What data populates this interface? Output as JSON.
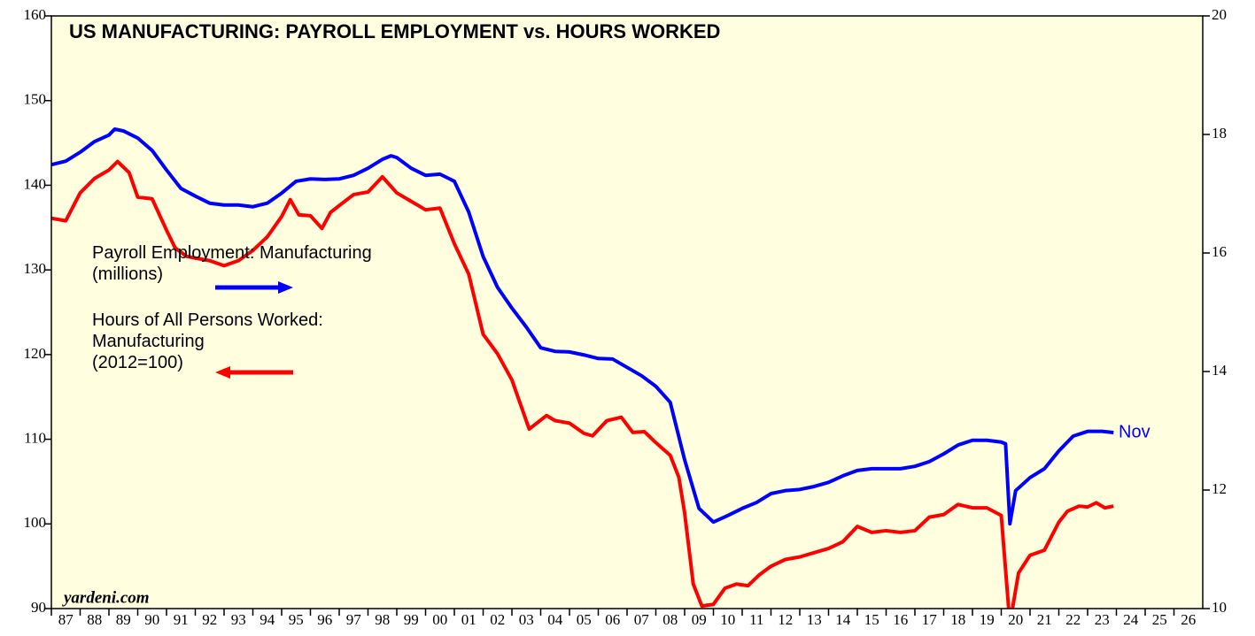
{
  "chart_data": {
    "type": "line",
    "title": "US MANUFACTURING: PAYROLL EMPLOYMENT vs. HOURS WORKED",
    "annotation": "Nov",
    "source": "yardeni.com",
    "xlim": [
      1987,
      2027
    ],
    "xticks": [
      {
        "value": 1987,
        "label": "87"
      },
      {
        "value": 1988,
        "label": "88"
      },
      {
        "value": 1989,
        "label": "89"
      },
      {
        "value": 1990,
        "label": "90"
      },
      {
        "value": 1991,
        "label": "91"
      },
      {
        "value": 1992,
        "label": "92"
      },
      {
        "value": 1993,
        "label": "93"
      },
      {
        "value": 1994,
        "label": "94"
      },
      {
        "value": 1995,
        "label": "95"
      },
      {
        "value": 1996,
        "label": "96"
      },
      {
        "value": 1997,
        "label": "97"
      },
      {
        "value": 1998,
        "label": "98"
      },
      {
        "value": 1999,
        "label": "99"
      },
      {
        "value": 2000,
        "label": "00"
      },
      {
        "value": 2001,
        "label": "01"
      },
      {
        "value": 2002,
        "label": "02"
      },
      {
        "value": 2003,
        "label": "03"
      },
      {
        "value": 2004,
        "label": "04"
      },
      {
        "value": 2005,
        "label": "05"
      },
      {
        "value": 2006,
        "label": "06"
      },
      {
        "value": 2007,
        "label": "07"
      },
      {
        "value": 2008,
        "label": "08"
      },
      {
        "value": 2009,
        "label": "09"
      },
      {
        "value": 2010,
        "label": "10"
      },
      {
        "value": 2011,
        "label": "11"
      },
      {
        "value": 2012,
        "label": "12"
      },
      {
        "value": 2013,
        "label": "13"
      },
      {
        "value": 2014,
        "label": "14"
      },
      {
        "value": 2015,
        "label": "15"
      },
      {
        "value": 2016,
        "label": "16"
      },
      {
        "value": 2017,
        "label": "17"
      },
      {
        "value": 2018,
        "label": "18"
      },
      {
        "value": 2019,
        "label": "19"
      },
      {
        "value": 2020,
        "label": "20"
      },
      {
        "value": 2021,
        "label": "21"
      },
      {
        "value": 2022,
        "label": "22"
      },
      {
        "value": 2023,
        "label": "23"
      },
      {
        "value": 2024,
        "label": "24"
      },
      {
        "value": 2025,
        "label": "25"
      },
      {
        "value": 2026,
        "label": "26"
      }
    ],
    "ylim": [
      90,
      160
    ],
    "yticks": [
      90,
      100,
      110,
      120,
      130,
      140,
      150,
      160
    ],
    "y2lim": [
      10,
      20
    ],
    "y2ticks": [
      10,
      12,
      14,
      16,
      18,
      20
    ],
    "series": [
      {
        "name": "Payroll Employment: Manufacturing\n(millions)",
        "color": "#0000ff",
        "axis": "y2",
        "x": [
          1987,
          1987.5,
          1988,
          1988.5,
          1989,
          1989.2,
          1989.5,
          1990,
          1990.5,
          1991,
          1991.5,
          1992,
          1992.5,
          1993,
          1993.5,
          1994,
          1994.5,
          1995,
          1995.5,
          1996,
          1996.5,
          1997,
          1997.5,
          1998,
          1998.5,
          1998.8,
          1999,
          1999.5,
          2000,
          2000.5,
          2001,
          2001.5,
          2002,
          2002.5,
          2003,
          2003.5,
          2004,
          2004.5,
          2005,
          2005.5,
          2006,
          2006.5,
          2007,
          2007.5,
          2008,
          2008.5,
          2009,
          2009.5,
          2010,
          2010.5,
          2011,
          2011.5,
          2012,
          2012.5,
          2013,
          2013.5,
          2014,
          2014.5,
          2015,
          2015.5,
          2016,
          2016.5,
          2017,
          2017.5,
          2018,
          2018.5,
          2019,
          2019.5,
          2020,
          2020.15,
          2020.3,
          2020.5,
          2021,
          2021.5,
          2022,
          2022.5,
          2023,
          2023.5,
          2023.9
        ],
        "values": [
          17.49,
          17.55,
          17.7,
          17.88,
          17.99,
          18.09,
          18.06,
          17.94,
          17.73,
          17.4,
          17.09,
          16.96,
          16.84,
          16.81,
          16.81,
          16.78,
          16.84,
          17.01,
          17.21,
          17.25,
          17.24,
          17.25,
          17.31,
          17.43,
          17.58,
          17.64,
          17.61,
          17.43,
          17.31,
          17.33,
          17.21,
          16.69,
          15.94,
          15.42,
          15.07,
          14.75,
          14.4,
          14.34,
          14.33,
          14.28,
          14.22,
          14.21,
          14.07,
          13.93,
          13.75,
          13.48,
          12.51,
          11.69,
          11.46,
          11.57,
          11.69,
          11.79,
          11.94,
          11.99,
          12.01,
          12.06,
          12.13,
          12.24,
          12.33,
          12.36,
          12.36,
          12.36,
          12.4,
          12.48,
          12.61,
          12.76,
          12.84,
          12.84,
          12.81,
          12.78,
          11.43,
          11.99,
          12.21,
          12.36,
          12.66,
          12.91,
          12.99,
          12.99,
          12.97
        ]
      },
      {
        "name": "Hours of All Persons Worked:\nManufacturing\n(2012=100)",
        "color": "#ff0000",
        "axis": "y",
        "x": [
          1987,
          1987.5,
          1988,
          1988.5,
          1989,
          1989.3,
          1989.7,
          1990,
          1990.5,
          1991,
          1991.3,
          1991.7,
          1992,
          1992.5,
          1993,
          1993.5,
          1994,
          1994.5,
          1995,
          1995.3,
          1995.6,
          1996,
          1996.4,
          1996.7,
          1997,
          1997.5,
          1998,
          1998.5,
          1999,
          1999.5,
          2000,
          2000.5,
          2001,
          2001.5,
          2002,
          2002.5,
          2003,
          2003.6,
          2004.2,
          2004.5,
          2005,
          2005.5,
          2005.8,
          2006.3,
          2006.8,
          2007.2,
          2007.6,
          2008,
          2008.5,
          2008.8,
          2009,
          2009.3,
          2009.6,
          2010,
          2010.4,
          2010.8,
          2011.2,
          2011.6,
          2012,
          2012.5,
          2013,
          2013.5,
          2014,
          2014.5,
          2015,
          2015.5,
          2016,
          2016.5,
          2017,
          2017.5,
          2018,
          2018.5,
          2019,
          2019.5,
          2020,
          2020.3,
          2020.6,
          2021,
          2021.5,
          2022,
          2022.3,
          2022.7,
          2023,
          2023.3,
          2023.6,
          2023.9
        ],
        "values": [
          136.1,
          135.8,
          139.1,
          140.8,
          141.8,
          142.8,
          141.5,
          138.6,
          138.4,
          134.7,
          132.6,
          131.6,
          131.4,
          131.1,
          130.5,
          131.1,
          132.3,
          133.9,
          136.3,
          138.3,
          136.5,
          136.4,
          134.9,
          136.8,
          137.6,
          138.9,
          139.2,
          141.0,
          139.1,
          138.1,
          137.1,
          137.3,
          133.1,
          129.5,
          122.4,
          120.1,
          117.0,
          111.2,
          112.8,
          112.2,
          111.9,
          110.7,
          110.4,
          112.2,
          112.6,
          110.8,
          110.9,
          109.6,
          108.1,
          105.5,
          101.3,
          92.9,
          90.3,
          90.5,
          92.4,
          92.9,
          92.7,
          94.0,
          95.0,
          95.8,
          96.1,
          96.6,
          97.1,
          97.9,
          99.7,
          99.0,
          99.2,
          99.0,
          99.2,
          100.8,
          101.1,
          102.3,
          101.9,
          101.9,
          101.0,
          88.2,
          94.2,
          96.3,
          96.9,
          100.2,
          101.5,
          102.1,
          102.0,
          102.5,
          101.9,
          102.1
        ]
      }
    ]
  }
}
